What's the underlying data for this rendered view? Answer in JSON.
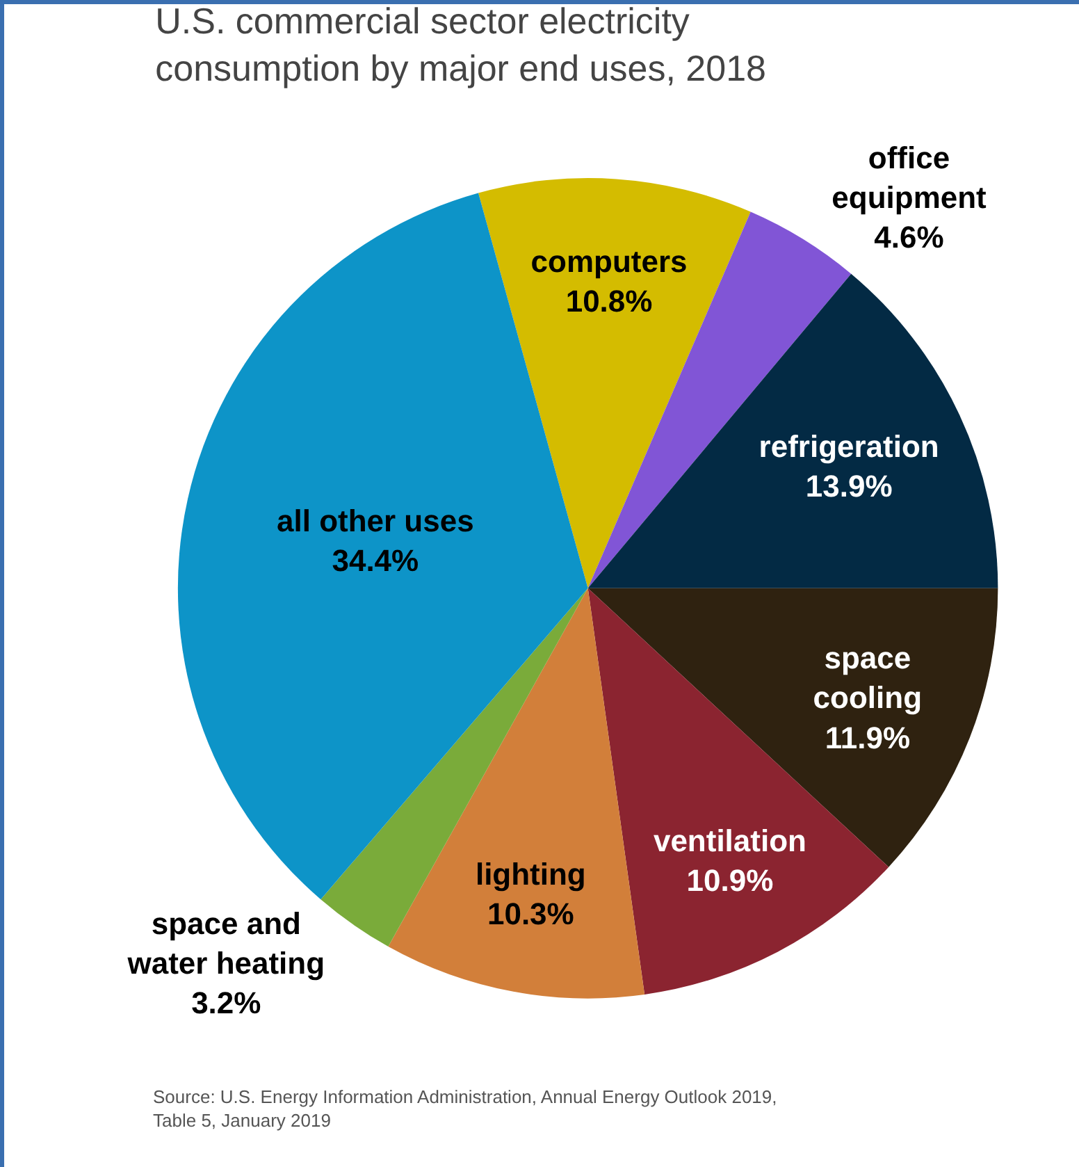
{
  "chart_data": {
    "type": "pie",
    "title": "U.S. commercial sector electricity consumption by major end uses, 2018",
    "categories": [
      "computers",
      "office equipment",
      "refrigeration",
      "space cooling",
      "ventilation",
      "lighting",
      "space and water heating",
      "all other uses"
    ],
    "values": [
      10.8,
      4.6,
      13.9,
      11.9,
      10.9,
      10.3,
      3.2,
      34.4
    ],
    "colors": [
      "#d4bc00",
      "#8155d6",
      "#032a44",
      "#2f2210",
      "#8b2430",
      "#d27f3a",
      "#7aab3a",
      "#0d94c8"
    ],
    "value_labels": [
      "10.8%",
      "4.6%",
      "13.9%",
      "11.9%",
      "10.9%",
      "10.3%",
      "3.2%",
      "34.4%"
    ],
    "legend": false,
    "annotations": [
      "Source: U.S. Energy Information Administration, Annual Energy Outlook 2019, Table 5, January 2019"
    ]
  }
}
